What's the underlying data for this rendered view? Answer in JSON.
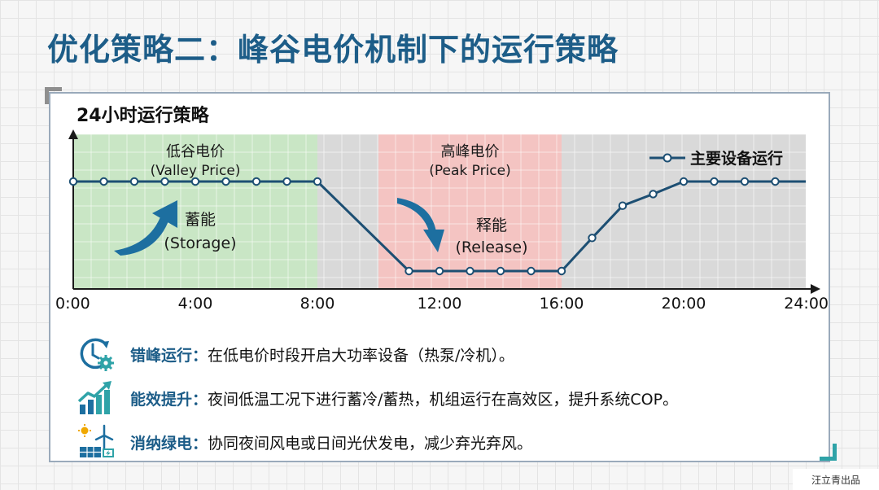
{
  "page": {
    "title": "优化策略二：峰谷电价机制下的运行策略",
    "credit": "汪立青出品"
  },
  "chart_data": {
    "type": "line",
    "title": "24小时运行策略",
    "xlabel": "",
    "ylabel": "",
    "xlim": [
      0,
      24
    ],
    "ylim": [
      0,
      1
    ],
    "x_ticks": [
      {
        "x": 0,
        "label": "0:00"
      },
      {
        "x": 4,
        "label": "4:00"
      },
      {
        "x": 8,
        "label": "8:00"
      },
      {
        "x": 12,
        "label": "12:00"
      },
      {
        "x": 16,
        "label": "16:00"
      },
      {
        "x": 20,
        "label": "20:00"
      },
      {
        "x": 24,
        "label": "24:00"
      }
    ],
    "grid": true,
    "legend": "top-right",
    "series": [
      {
        "name": "主要设备运行",
        "color": "#1d4f73",
        "x": [
          0,
          1,
          2,
          3,
          4,
          5,
          6,
          7,
          8,
          11,
          12,
          13,
          14,
          15,
          16,
          17,
          18,
          19,
          20,
          21,
          22,
          23
        ],
        "y": [
          1,
          1,
          1,
          1,
          1,
          1,
          1,
          1,
          1,
          0,
          0,
          0,
          0,
          0,
          0,
          0.37,
          0.73,
          0.86,
          1,
          1,
          1,
          1
        ]
      }
    ],
    "bands": [
      {
        "from": 0,
        "to": 8,
        "color": "#c9e6c5",
        "label": "低谷电价",
        "sublabel": "(Valley Price)"
      },
      {
        "from": 8,
        "to": 10,
        "color": "#d9d9d9",
        "label": "",
        "sublabel": ""
      },
      {
        "from": 10,
        "to": 16,
        "color": "#f4c4c2",
        "label": "高峰电价",
        "sublabel": "(Peak Price)"
      },
      {
        "from": 16,
        "to": 24,
        "color": "#d9d9d9",
        "label": "",
        "sublabel": ""
      }
    ],
    "annotations": [
      {
        "id": "storage",
        "label": "蓄能",
        "sublabel": "(Storage)",
        "color": "#1d6fa0"
      },
      {
        "id": "release",
        "label": "释能",
        "sublabel": "(Release)",
        "color": "#1d6fa0"
      }
    ]
  },
  "strategies": [
    {
      "key": "错峰运行：",
      "text": "在低电价时段开启大功率设备（热泵/冷机）。",
      "icon": "clock-gear-icon"
    },
    {
      "key": "能效提升：",
      "text": "夜间低温工况下进行蓄冷/蓄热，机组运行在高效区，提升系统COP。",
      "icon": "efficiency-chart-icon"
    },
    {
      "key": "消纳绿电：",
      "text": "协同夜间风电或日间光伏发电，减少弃光弃风。",
      "icon": "solar-wind-icon"
    }
  ],
  "colors": {
    "accent": "#1d5d88",
    "teal": "#2fa3a8",
    "line": "#1d4f73"
  }
}
